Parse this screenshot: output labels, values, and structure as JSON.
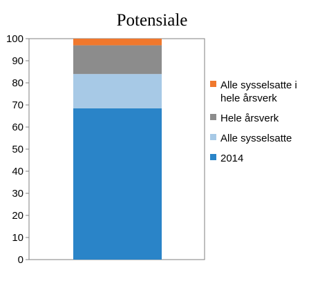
{
  "chart_data": {
    "type": "bar",
    "stacked": true,
    "title": "Potensiale",
    "categories": [
      ""
    ],
    "ylim": [
      0,
      100
    ],
    "yticks": [
      0,
      10,
      20,
      30,
      40,
      50,
      60,
      70,
      80,
      90,
      100
    ],
    "grid": false,
    "legend_position": "right",
    "series": [
      {
        "name": "2014",
        "values": [
          68.5
        ],
        "color": "#2a84c8"
      },
      {
        "name": "Alle sysselsatte",
        "values": [
          15.5
        ],
        "color": "#a7c9e6"
      },
      {
        "name": "Hele årsverk",
        "values": [
          13.0
        ],
        "color": "#8c8c8c"
      },
      {
        "name": "Alle sysselsatte i hele årsverk",
        "values": [
          3.0
        ],
        "color": "#f0782d"
      }
    ],
    "legend": [
      {
        "lines": [
          "Alle sysselsatte i",
          "hele årsverk"
        ],
        "color": "#f0782d"
      },
      {
        "lines": [
          "Hele årsverk"
        ],
        "color": "#8c8c8c"
      },
      {
        "lines": [
          "Alle sysselsatte"
        ],
        "color": "#a7c9e6"
      },
      {
        "lines": [
          "2014"
        ],
        "color": "#2a84c8"
      }
    ]
  }
}
